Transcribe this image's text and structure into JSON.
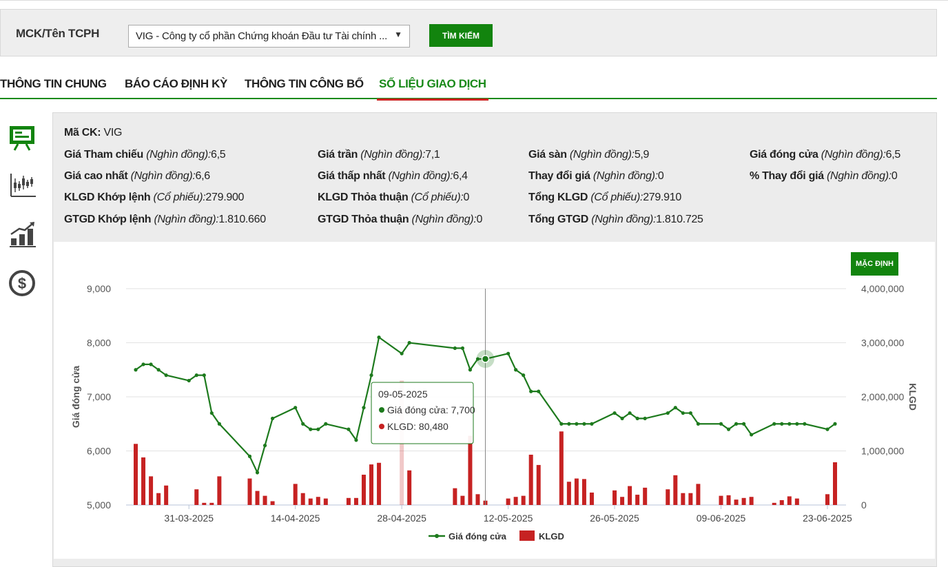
{
  "search": {
    "label": "MCK/Tên TCPH",
    "selected_value": "VIG - Công ty cổ phần Chứng khoán Đầu tư Tài chính ...",
    "button_label": "TÌM KIẾM"
  },
  "tabs": [
    {
      "label": "THÔNG TIN CHUNG",
      "active": false
    },
    {
      "label": "BÁO CÁO ĐỊNH KỲ",
      "active": false
    },
    {
      "label": "THÔNG TIN CÔNG BỐ",
      "active": false
    },
    {
      "label": "SỐ LIỆU GIAO DỊCH",
      "active": true
    }
  ],
  "sidebar_icons": [
    "presentation-board-icon",
    "candlestick-chart-icon",
    "bar-growth-chart-icon",
    "dollar-coin-icon"
  ],
  "info": {
    "code_label": "Mã CK:",
    "code_value": "VIG",
    "ref_label": "Giá Tham chiếu",
    "ref_unit": "(Nghìn đồng):",
    "ref_value": "6,5",
    "ceil_label": "Giá trần",
    "ceil_unit": "(Nghìn đồng):",
    "ceil_value": "7,1",
    "floor_label": "Giá sàn",
    "floor_unit": "(Nghìn đồng):",
    "floor_value": "5,9",
    "close_label": "Giá đóng cửa",
    "close_unit": "(Nghìn đồng):",
    "close_value": "6,5",
    "high_label": "Giá cao nhất",
    "high_unit": "(Nghìn đồng):",
    "high_value": "6,6",
    "low_label": "Giá thấp nhất",
    "low_unit": "(Nghìn đồng):",
    "low_value": "6,4",
    "chg_label": "Thay đổi giá",
    "chg_unit": "(Nghìn đồng):",
    "chg_value": "0",
    "pchg_label": "% Thay đổi giá",
    "pchg_unit": "(Nghìn đồng):",
    "pchg_value": "0",
    "klgd_kl_label": "KLGD Khớp lệnh",
    "klgd_kl_unit": "(Cổ phiếu):",
    "klgd_kl_value": "279.900",
    "klgd_tt_label": "KLGD Thỏa thuận",
    "klgd_tt_unit": "(Cổ phiếu):",
    "klgd_tt_value": "0",
    "klgd_total_label": "Tổng KLGD",
    "klgd_total_unit": "(Cổ phiếu):",
    "klgd_total_value": "279.910",
    "gtgd_kl_label": "GTGD Khớp lệnh",
    "gtgd_kl_unit": "(Nghìn đồng):",
    "gtgd_kl_value": "1.810.660",
    "gtgd_tt_label": "GTGD Thỏa thuận",
    "gtgd_tt_unit": "(Nghìn đồng):",
    "gtgd_tt_value": "0",
    "gtgd_total_label": "Tổng GTGD",
    "gtgd_total_unit": "(Nghìn đồng):",
    "gtgd_total_value": "1.810.725"
  },
  "chart_controls": {
    "default_button": "MẶC ĐỊNH"
  },
  "colors": {
    "price_line": "#1d7a1d",
    "volume_bar": "#c62222",
    "accent_green": "#12840e",
    "tab_underline": "#d02020"
  },
  "chart_data": {
    "type": "line",
    "title": "",
    "ylabel": "Giá đóng cửa",
    "y2label": "KLGD",
    "ylim": [
      5000,
      9000
    ],
    "y2lim": [
      0,
      4000000
    ],
    "y_ticks": [
      "5,000",
      "6,000",
      "7,000",
      "8,000",
      "9,000"
    ],
    "y2_ticks": [
      "0",
      "1,000,000",
      "2,000,000",
      "3,000,000",
      "4,000,000"
    ],
    "x_ticks": [
      {
        "date": "2025-03-31",
        "label": "31-03-2025"
      },
      {
        "date": "2025-04-14",
        "label": "14-04-2025"
      },
      {
        "date": "2025-04-28",
        "label": "28-04-2025"
      },
      {
        "date": "2025-05-12",
        "label": "12-05-2025"
      },
      {
        "date": "2025-05-26",
        "label": "26-05-2025"
      },
      {
        "date": "2025-06-09",
        "label": "09-06-2025"
      },
      {
        "date": "2025-06-23",
        "label": "23-06-2025"
      }
    ],
    "dates": [
      "2025-03-24",
      "2025-03-25",
      "2025-03-26",
      "2025-03-27",
      "2025-03-28",
      "2025-03-31",
      "2025-04-01",
      "2025-04-02",
      "2025-04-03",
      "2025-04-04",
      "2025-04-08",
      "2025-04-09",
      "2025-04-10",
      "2025-04-11",
      "2025-04-14",
      "2025-04-15",
      "2025-04-16",
      "2025-04-17",
      "2025-04-18",
      "2025-04-21",
      "2025-04-22",
      "2025-04-23",
      "2025-04-24",
      "2025-04-25",
      "2025-04-28",
      "2025-04-29",
      "2025-05-05",
      "2025-05-06",
      "2025-05-07",
      "2025-05-08",
      "2025-05-09",
      "2025-05-12",
      "2025-05-13",
      "2025-05-14",
      "2025-05-15",
      "2025-05-16",
      "2025-05-19",
      "2025-05-20",
      "2025-05-21",
      "2025-05-22",
      "2025-05-23",
      "2025-05-26",
      "2025-05-27",
      "2025-05-28",
      "2025-05-29",
      "2025-05-30",
      "2025-06-02",
      "2025-06-03",
      "2025-06-04",
      "2025-06-05",
      "2025-06-06",
      "2025-06-09",
      "2025-06-10",
      "2025-06-11",
      "2025-06-12",
      "2025-06-13",
      "2025-06-16",
      "2025-06-17",
      "2025-06-18",
      "2025-06-19",
      "2025-06-20",
      "2025-06-23",
      "2025-06-24"
    ],
    "series": [
      {
        "name": "Giá đóng cửa",
        "axis": "left",
        "type": "line",
        "values": [
          7500,
          7600,
          7600,
          7500,
          7400,
          7300,
          7400,
          7400,
          6700,
          6500,
          5900,
          5600,
          6100,
          6600,
          6800,
          6500,
          6400,
          6400,
          6500,
          6400,
          6200,
          6800,
          7400,
          8100,
          7800,
          8000,
          7900,
          7900,
          7500,
          7700,
          7700,
          7800,
          7500,
          7400,
          7100,
          7100,
          6500,
          6500,
          6500,
          6500,
          6500,
          6700,
          6600,
          6700,
          6600,
          6600,
          6700,
          6800,
          6700,
          6700,
          6500,
          6500,
          6400,
          6500,
          6500,
          6300,
          6500,
          6500,
          6500,
          6500,
          6500,
          6400,
          6500
        ]
      },
      {
        "name": "KLGD",
        "axis": "right",
        "type": "bar",
        "values": [
          1130000,
          880000,
          530000,
          220000,
          360000,
          0,
          290000,
          40000,
          40000,
          530000,
          490000,
          260000,
          170000,
          70000,
          390000,
          220000,
          120000,
          150000,
          120000,
          130000,
          130000,
          560000,
          750000,
          780000,
          2300000,
          640000,
          310000,
          170000,
          1280000,
          200000,
          80480,
          120000,
          150000,
          170000,
          930000,
          740000,
          1360000,
          430000,
          490000,
          480000,
          230000,
          270000,
          150000,
          350000,
          190000,
          320000,
          290000,
          550000,
          220000,
          220000,
          390000,
          170000,
          180000,
          100000,
          130000,
          150000,
          40000,
          90000,
          160000,
          120000,
          0,
          200000,
          790000
        ]
      }
    ],
    "legend": {
      "position": "bottom-center",
      "items": [
        "Giá đóng cửa",
        "KLGD"
      ]
    },
    "grid": true,
    "tooltip": {
      "date": "09-05-2025",
      "price_label": "Giá đóng cửa",
      "price_value": "7,700",
      "volume_label": "KLGD",
      "volume_value": "80,480"
    }
  }
}
